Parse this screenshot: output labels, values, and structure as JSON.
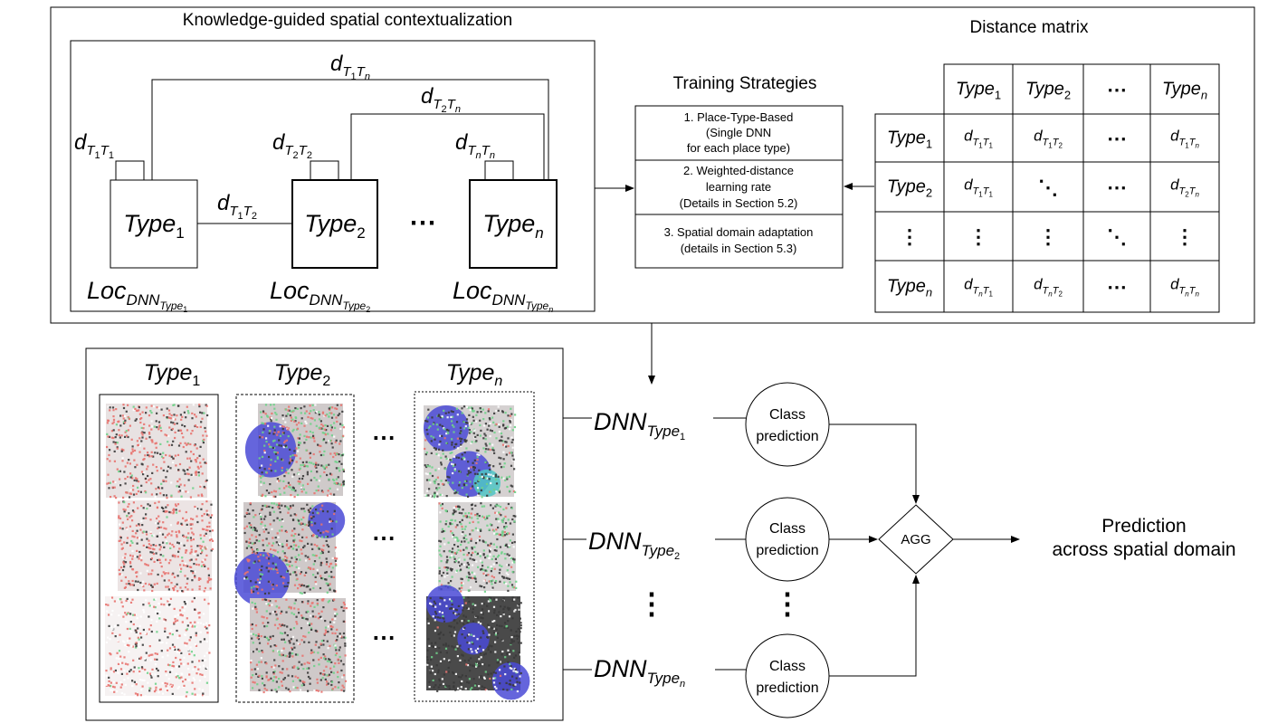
{
  "top": {
    "knowledge_title": "Knowledge-guided spatial contextualization",
    "training_title": "Training Strategies",
    "distance_title": "Distance matrix",
    "ellipsis": "⋯",
    "types": [
      {
        "base": "Type",
        "sub": "1"
      },
      {
        "base": "Type",
        "sub": "2"
      },
      {
        "base": "Type",
        "sub": "n"
      }
    ],
    "locs": [
      {
        "base": "Loc",
        "sub": "DNN",
        "subsub": "Type",
        "subsubsub": "1"
      },
      {
        "base": "Loc",
        "sub": "DNN",
        "subsub": "Type",
        "subsubsub": "2"
      },
      {
        "base": "Loc",
        "sub": "DNN",
        "subsub": "Type",
        "subsubsub": "n"
      }
    ],
    "distances": {
      "d11": {
        "base": "d",
        "a": "T",
        "as": "1",
        "b": "T",
        "bs": "1"
      },
      "d22": {
        "base": "d",
        "a": "T",
        "as": "2",
        "b": "T",
        "bs": "2"
      },
      "dnn": {
        "base": "d",
        "a": "T",
        "as": "n",
        "b": "T",
        "bs": "n"
      },
      "d12": {
        "base": "d",
        "a": "T",
        "as": "1",
        "b": "T",
        "bs": "2"
      },
      "d1n": {
        "base": "d",
        "a": "T",
        "as": "1",
        "b": "T",
        "bs": "n"
      },
      "d2n": {
        "base": "d",
        "a": "T",
        "as": "2",
        "b": "T",
        "bs": "n"
      }
    },
    "strategies": [
      [
        "1. Place-Type-Based",
        "(Single DNN",
        "for each place type)"
      ],
      [
        "2. Weighted-distance",
        "learning rate",
        "(Details in Section 5.2)"
      ],
      [
        "3. Spatial domain adaptation",
        "(details in Section 5.3)"
      ]
    ]
  },
  "matrix": {
    "col_headers": [
      {
        "kind": "type",
        "base": "Type",
        "sub": "1"
      },
      {
        "kind": "type",
        "base": "Type",
        "sub": "2"
      },
      {
        "kind": "text",
        "text": "⋯"
      },
      {
        "kind": "type",
        "base": "Type",
        "sub": "n"
      }
    ],
    "row_headers": [
      {
        "kind": "type",
        "base": "Type",
        "sub": "1"
      },
      {
        "kind": "type",
        "base": "Type",
        "sub": "2"
      },
      {
        "kind": "text",
        "text": "⋮"
      },
      {
        "kind": "type",
        "base": "Type",
        "sub": "n"
      }
    ],
    "cells": [
      [
        {
          "kind": "d",
          "as": "1",
          "bs": "1"
        },
        {
          "kind": "d",
          "as": "1",
          "bs": "2"
        },
        {
          "kind": "text",
          "text": "⋯"
        },
        {
          "kind": "d",
          "as": "1",
          "bs": "n"
        }
      ],
      [
        {
          "kind": "d",
          "as": "1",
          "bs": "1"
        },
        {
          "kind": "text",
          "text": "⋱"
        },
        {
          "kind": "text",
          "text": "⋯"
        },
        {
          "kind": "d",
          "as": "2",
          "bs": "n"
        }
      ],
      [
        {
          "kind": "text",
          "text": "⋮"
        },
        {
          "kind": "text",
          "text": "⋮"
        },
        {
          "kind": "text",
          "text": "⋱"
        },
        {
          "kind": "text",
          "text": "⋮"
        }
      ],
      [
        {
          "kind": "d",
          "as": "n",
          "bs": "1"
        },
        {
          "kind": "d",
          "as": "n",
          "bs": "2"
        },
        {
          "kind": "text",
          "text": "⋯"
        },
        {
          "kind": "d",
          "as": "n",
          "bs": "n"
        }
      ]
    ]
  },
  "bottom": {
    "panel_types": [
      {
        "base": "Type",
        "sub": "1"
      },
      {
        "base": "Type",
        "sub": "2"
      },
      {
        "base": "Type",
        "sub": "n"
      }
    ],
    "ellipsis": "⋯",
    "vdots": "⋮",
    "dnns": [
      {
        "base": "DNN",
        "sub": "Type",
        "subsub": "1"
      },
      {
        "base": "DNN",
        "sub": "Type",
        "subsub": "2"
      },
      {
        "base": "DNN",
        "sub": "Type",
        "subsub": "n"
      }
    ],
    "class_prediction": [
      "Class",
      "prediction"
    ],
    "agg": "AGG",
    "prediction": [
      "Prediction",
      "across spatial domain"
    ]
  },
  "colors": {
    "red_cells": "#e8736f",
    "green_cells": "#6fd28a",
    "blue_cells": "#4a4ad6",
    "dark_cells": "#3a3a3a",
    "cyan_cells": "#4fc6c6",
    "tissue_bg": "#d8d6d6"
  }
}
